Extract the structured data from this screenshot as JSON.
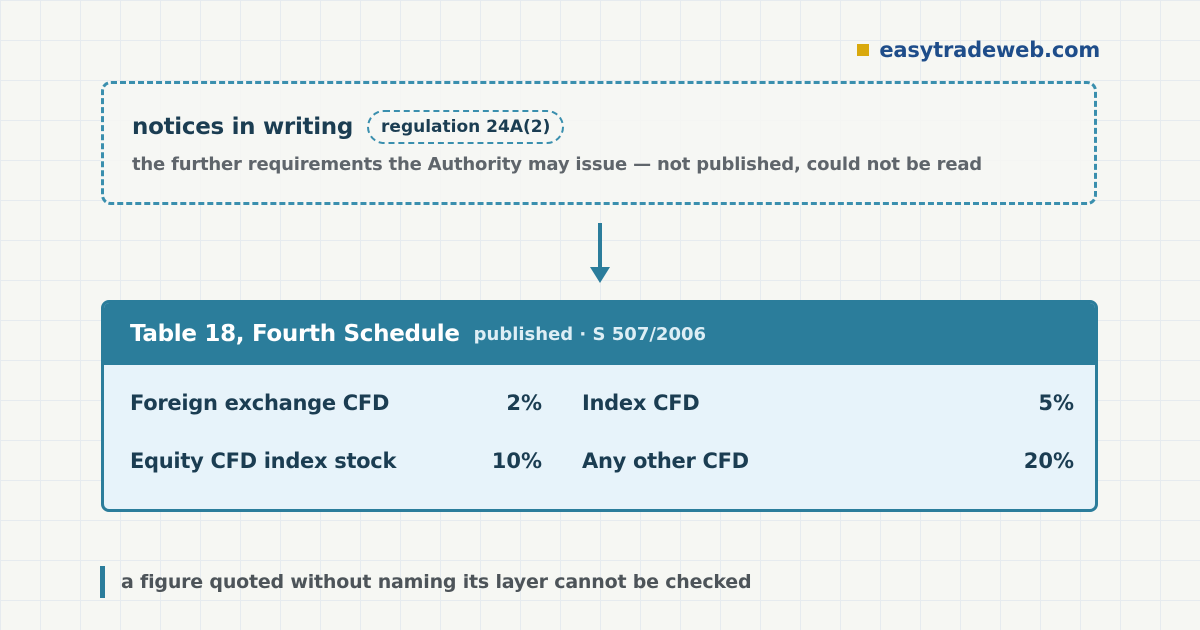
{
  "brand": {
    "name": "easytradeweb.com",
    "mark_color": "#d9a90d"
  },
  "notice": {
    "title": "notices in writing",
    "reference": "regulation 24A(2)",
    "description": "the further requirements the Authority may issue — not published, could not be read"
  },
  "table": {
    "title": "Table 18, Fourth Schedule",
    "status": "published · S 507/2006",
    "rows": [
      {
        "label": "Foreign exchange CFD",
        "value": "2%"
      },
      {
        "label": "Index CFD",
        "value": "5%"
      },
      {
        "label": "Equity CFD index stock",
        "value": "10%"
      },
      {
        "label": "Any other CFD",
        "value": "20%"
      }
    ]
  },
  "footnote": {
    "text": "a figure quoted without naming its layer cannot be checked"
  },
  "colors": {
    "accent": "#2b7d9b",
    "dashed": "#3a8fae",
    "ink": "#1b3d52",
    "panel": "#e7f3fa"
  }
}
